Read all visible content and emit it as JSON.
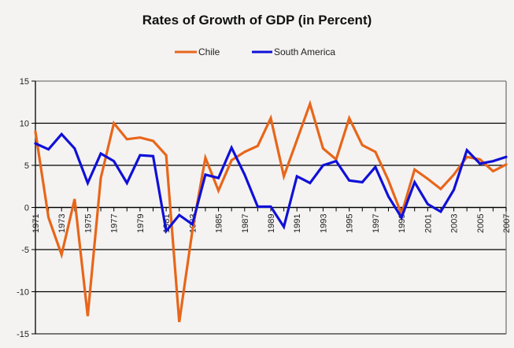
{
  "chart_data": {
    "type": "line",
    "title": "Rates of Growth of GDP (in Percent)",
    "xlabel": "",
    "ylabel": "",
    "x": [
      1971,
      1972,
      1973,
      1974,
      1975,
      1976,
      1977,
      1978,
      1979,
      1980,
      1981,
      1982,
      1983,
      1984,
      1985,
      1986,
      1987,
      1988,
      1989,
      1990,
      1991,
      1992,
      1993,
      1994,
      1995,
      1996,
      1997,
      1998,
      1999,
      2000,
      2001,
      2002,
      2003,
      2004,
      2005,
      2006,
      2007
    ],
    "x_tick_labels": [
      "1971",
      "1973",
      "1975",
      "1977",
      "1979",
      "1981",
      "1983",
      "1985",
      "1987",
      "1989",
      "1991",
      "1993",
      "1995",
      "1997",
      "1999",
      "2001",
      "2003",
      "2005",
      "2007"
    ],
    "y_tick_labels": [
      "15",
      "10",
      "5",
      "0",
      "-5",
      "-10",
      "-15"
    ],
    "y_ticks": [
      15,
      10,
      5,
      0,
      -5,
      -10,
      -15
    ],
    "ylim": [
      -15,
      15
    ],
    "xlim": [
      1971,
      2007
    ],
    "grid": "horizontal",
    "legend_position": "top-center",
    "series": [
      {
        "name": "Chile",
        "color": "#e8661a",
        "values": [
          9.0,
          -1.2,
          -5.6,
          1.0,
          -12.9,
          3.5,
          10.0,
          8.1,
          8.3,
          7.9,
          6.2,
          -13.6,
          -2.8,
          5.9,
          2.0,
          5.6,
          6.6,
          7.3,
          10.6,
          3.7,
          8.0,
          12.3,
          7.0,
          5.7,
          10.6,
          7.4,
          6.6,
          3.2,
          -0.8,
          4.5,
          3.4,
          2.2,
          3.9,
          6.0,
          5.7,
          4.3,
          5.1
        ]
      },
      {
        "name": "South America",
        "color": "#1010d8",
        "values": [
          7.6,
          6.9,
          8.7,
          7.0,
          2.9,
          6.4,
          5.5,
          2.9,
          6.2,
          6.1,
          -2.8,
          -0.9,
          -2.0,
          3.9,
          3.5,
          7.1,
          3.9,
          0.1,
          0.1,
          -2.3,
          3.7,
          2.9,
          5.0,
          5.5,
          3.2,
          3.0,
          4.8,
          1.3,
          -1.2,
          3.0,
          0.4,
          -0.5,
          2.1,
          6.8,
          5.2,
          5.5,
          6.0
        ]
      }
    ]
  }
}
